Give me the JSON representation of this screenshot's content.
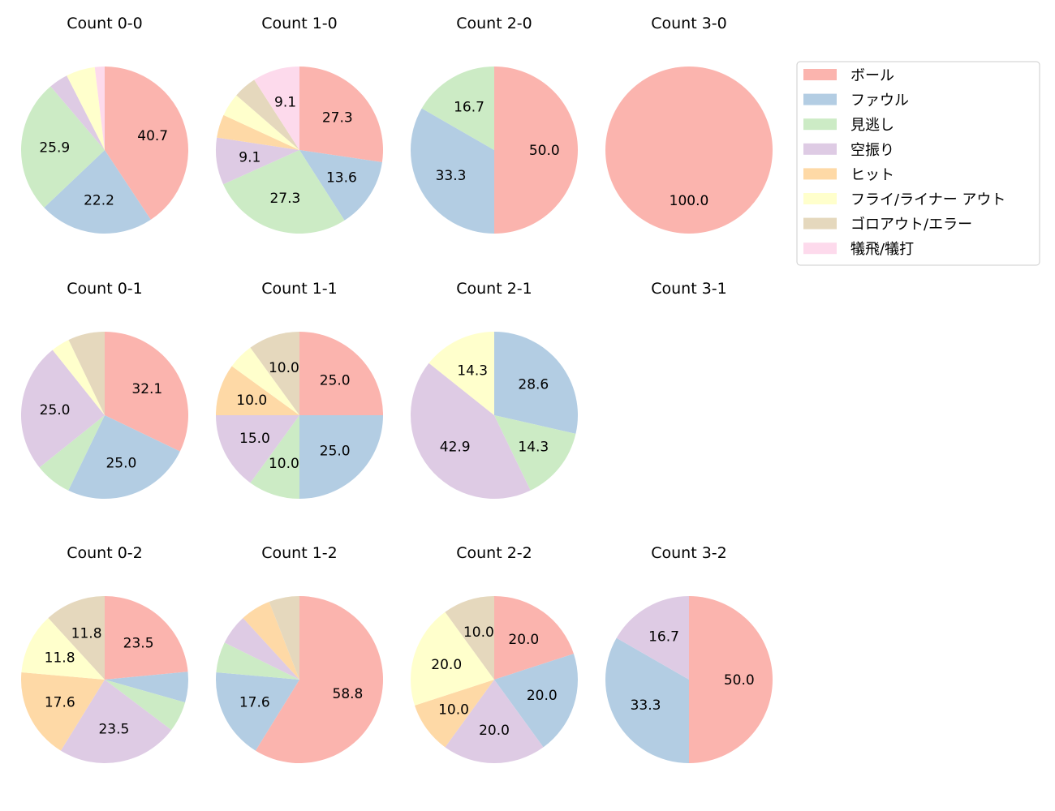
{
  "chart_data": {
    "type": "pie",
    "categories": [
      "ボール",
      "ファウル",
      "見逃し",
      "空振り",
      "ヒット",
      "フライ/ライナー アウト",
      "ゴロアウト/エラー",
      "犠飛/犠打"
    ],
    "colors": [
      "#fbb4ae",
      "#b3cde3",
      "#ccebc5",
      "#decbe4",
      "#fed9a6",
      "#ffffcc",
      "#e5d8bd",
      "#fddaec"
    ],
    "legend_position": "top-right",
    "start_angle": 90,
    "direction": "clockwise",
    "label_format": "percent, 1 decimal",
    "pies": [
      {
        "title": "Count 0-0",
        "values": [
          40.7,
          22.2,
          25.9,
          3.7,
          0,
          5.6,
          0,
          1.9
        ]
      },
      {
        "title": "Count 1-0",
        "values": [
          27.3,
          13.6,
          27.3,
          9.1,
          4.5,
          4.5,
          4.5,
          9.1
        ]
      },
      {
        "title": "Count 2-0",
        "values": [
          50.0,
          33.3,
          16.7,
          0,
          0,
          0,
          0,
          0
        ]
      },
      {
        "title": "Count 3-0",
        "values": [
          100.0,
          0,
          0,
          0,
          0,
          0,
          0,
          0
        ]
      },
      {
        "title": "Count 0-1",
        "values": [
          32.1,
          25.0,
          7.1,
          25.0,
          0,
          3.6,
          7.1,
          0
        ]
      },
      {
        "title": "Count 1-1",
        "values": [
          25.0,
          25.0,
          10.0,
          15.0,
          10.0,
          5.0,
          10.0,
          0
        ]
      },
      {
        "title": "Count 2-1",
        "values": [
          0,
          28.6,
          14.3,
          42.9,
          0,
          14.3,
          0,
          0
        ]
      },
      {
        "title": "Count 3-1",
        "values": []
      },
      {
        "title": "Count 0-2",
        "values": [
          23.5,
          5.9,
          5.9,
          23.5,
          17.6,
          11.8,
          11.8,
          0
        ]
      },
      {
        "title": "Count 1-2",
        "values": [
          58.8,
          17.6,
          5.9,
          5.9,
          5.9,
          0,
          5.9,
          0
        ]
      },
      {
        "title": "Count 2-2",
        "values": [
          20.0,
          20.0,
          0,
          20.0,
          10.0,
          20.0,
          10.0,
          0
        ]
      },
      {
        "title": "Count 3-2",
        "values": [
          50.0,
          33.3,
          0,
          16.7,
          0,
          0,
          0,
          0
        ]
      }
    ]
  }
}
